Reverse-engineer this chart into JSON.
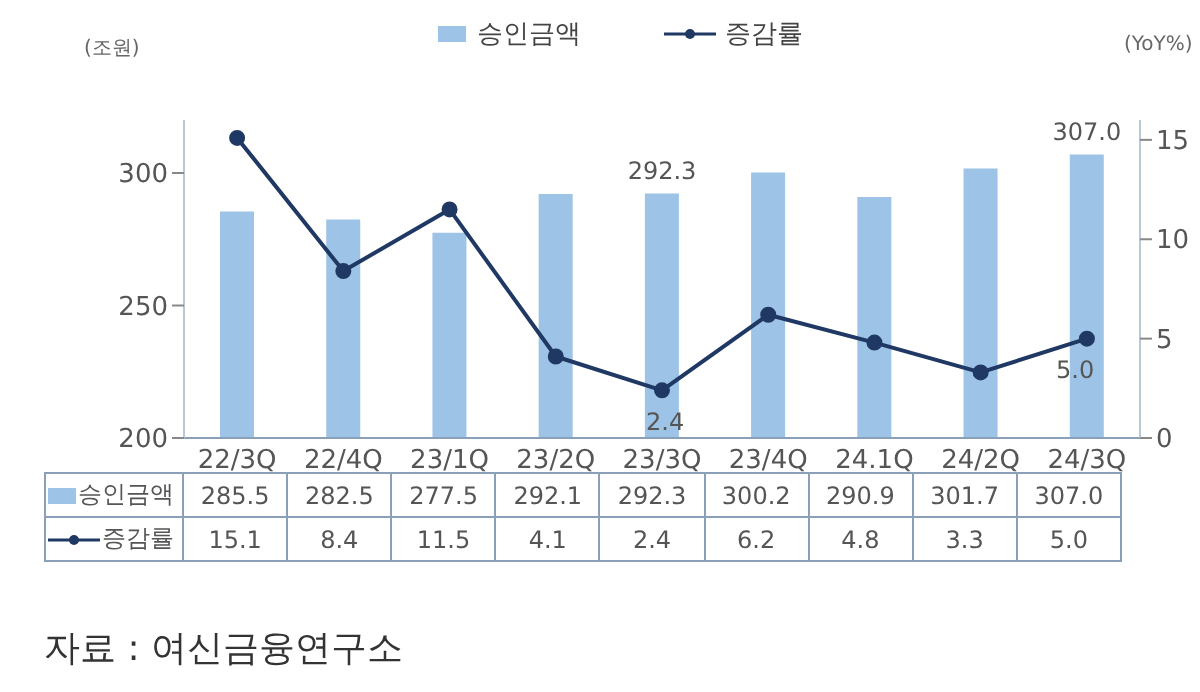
{
  "chart_data": {
    "type": "bar",
    "categories": [
      "22/3Q",
      "22/4Q",
      "23/1Q",
      "23/2Q",
      "23/3Q",
      "23/4Q",
      "24.1Q",
      "24/2Q",
      "24/3Q"
    ],
    "series": [
      {
        "name": "승인금액",
        "color": "#9dc3e6",
        "values": [
          285.5,
          282.5,
          277.5,
          292.1,
          292.3,
          300.2,
          290.9,
          301.7,
          307.0
        ],
        "value_labels": [
          "285.5",
          "282.5",
          "277.5",
          "292.1",
          "292.3",
          "300.2",
          "290.9",
          "301.7",
          "307.0"
        ]
      },
      {
        "name": "증감률",
        "type": "line",
        "axis": "y2",
        "color": "#1f3864",
        "values": [
          15.1,
          8.4,
          11.5,
          4.1,
          2.4,
          6.2,
          4.8,
          3.3,
          5.0
        ],
        "value_labels": [
          "15.1",
          "8.4",
          "11.5",
          "4.1",
          "2.4",
          "6.2",
          "4.8",
          "3.3",
          "5.0"
        ]
      }
    ],
    "ylabel": "(조원)",
    "y2label": "(YoY%)",
    "ylim": [
      200,
      320
    ],
    "yticks": [
      200,
      250,
      300
    ],
    "y2lim": [
      0,
      16
    ],
    "y2ticks": [
      0,
      5,
      10,
      15
    ],
    "legend": "top",
    "marker": "circle",
    "annotations": [
      {
        "text": "292.3",
        "x": "23/3Q",
        "y": 292.3
      },
      "2.4",
      {
        "text": "307.0",
        "x": "24/3Q",
        "y": 307.0
      },
      "5.0",
      "자료 : 여신금융연구소"
    ]
  }
}
